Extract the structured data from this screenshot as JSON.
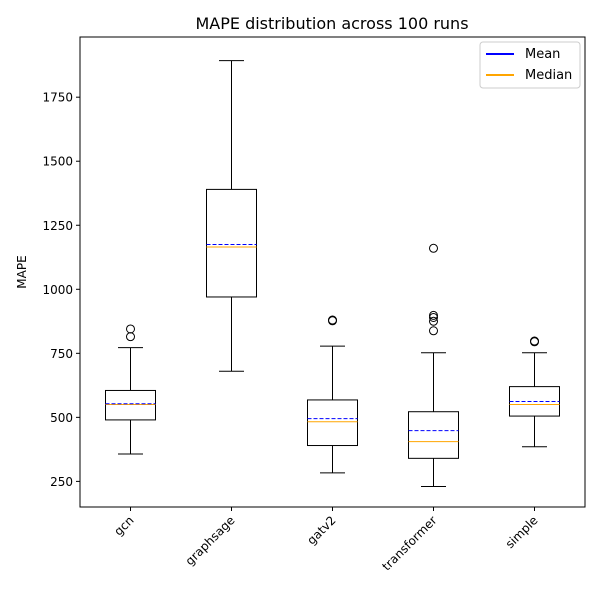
{
  "chart_data": {
    "type": "box",
    "title": "MAPE distribution across 100 runs",
    "xlabel": "",
    "ylabel": "MAPE",
    "ylim": [
      150,
      1985
    ],
    "yticks": [
      250,
      500,
      750,
      1000,
      1250,
      1500,
      1750
    ],
    "categories": [
      "gcn",
      "graphsage",
      "gatv2",
      "transformer",
      "simple"
    ],
    "boxes": [
      {
        "name": "gcn",
        "whisker_low": 357,
        "q1": 490,
        "median": 550,
        "mean": 553,
        "q3": 605,
        "whisker_high": 772,
        "outliers": [
          815,
          845
        ]
      },
      {
        "name": "graphsage",
        "whisker_low": 680,
        "q1": 970,
        "median": 1165,
        "mean": 1175,
        "q3": 1390,
        "whisker_high": 1893,
        "outliers": []
      },
      {
        "name": "gatv2",
        "whisker_low": 283,
        "q1": 390,
        "median": 483,
        "mean": 495,
        "q3": 568,
        "whisker_high": 778,
        "outliers": [
          877,
          880
        ]
      },
      {
        "name": "transformer",
        "whisker_low": 230,
        "q1": 340,
        "median": 405,
        "mean": 448,
        "q3": 522,
        "whisker_high": 752,
        "outliers": [
          838,
          875,
          890,
          898,
          1160
        ]
      },
      {
        "name": "simple",
        "whisker_low": 385,
        "q1": 505,
        "median": 550,
        "mean": 562,
        "q3": 620,
        "whisker_high": 752,
        "outliers": [
          795,
          798
        ]
      }
    ],
    "legend": {
      "position": "top-right",
      "entries": [
        {
          "label": "Mean",
          "color": "#0000ff",
          "style": "solid"
        },
        {
          "label": "Median",
          "color": "#ffa500",
          "style": "solid"
        }
      ]
    },
    "colors": {
      "box": "#000000",
      "mean": "#0000ff",
      "median": "#ffa500"
    },
    "grid": false
  }
}
